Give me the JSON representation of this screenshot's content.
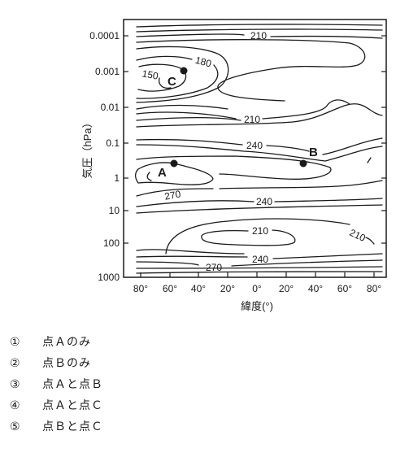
{
  "y_axis": {
    "title": "気圧（hPa）",
    "ticks": [
      "0.0001",
      "0.001",
      "0.01",
      "0.1",
      "1",
      "10",
      "100",
      "1000"
    ]
  },
  "x_axis": {
    "title": "緯度(°)",
    "ticks": [
      "80°",
      "60°",
      "40°",
      "20°",
      "0°",
      "20°",
      "40°",
      "60°",
      "80°"
    ]
  },
  "contour_labels": [
    "210",
    "180",
    "150",
    "210",
    "240",
    "270",
    "240",
    "210",
    "210",
    "240",
    "270"
  ],
  "points": [
    "A",
    "B",
    "C"
  ],
  "choices": [
    {
      "num": "①",
      "text": "点Ａのみ"
    },
    {
      "num": "②",
      "text": "点Ｂのみ"
    },
    {
      "num": "③",
      "text": "点Ａと点Ｂ"
    },
    {
      "num": "④",
      "text": "点Ａと点Ｃ"
    },
    {
      "num": "⑤",
      "text": "点Ｂと点Ｃ"
    }
  ]
}
